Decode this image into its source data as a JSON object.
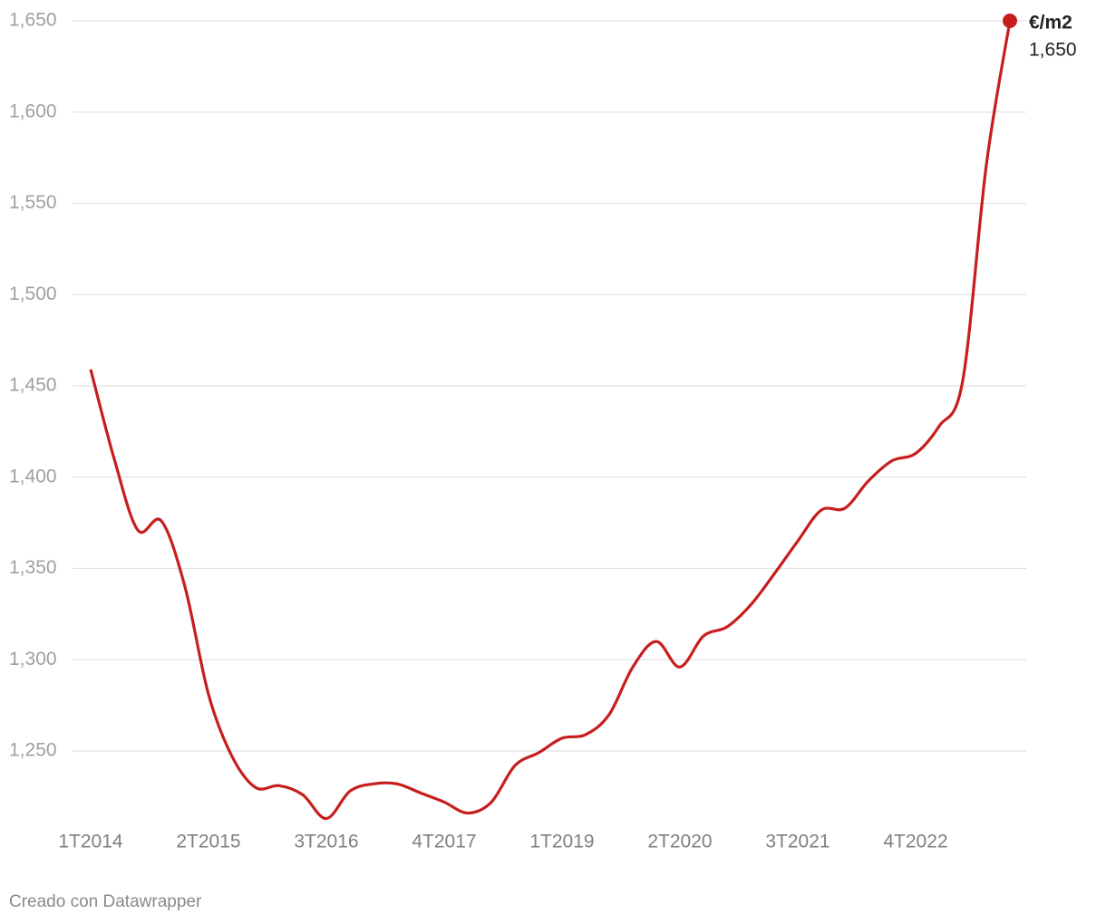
{
  "chart_data": {
    "type": "line",
    "categories": [
      "1T2014",
      null,
      null,
      null,
      null,
      "2T2015",
      null,
      null,
      null,
      null,
      "3T2016",
      null,
      null,
      null,
      null,
      "4T2017",
      null,
      null,
      null,
      null,
      "1T2019",
      null,
      null,
      null,
      null,
      "2T2020",
      null,
      null,
      null,
      null,
      "3T2021",
      null,
      null,
      null,
      null,
      "4T2022",
      null,
      null,
      null,
      null
    ],
    "series": [
      {
        "name": "€/m2",
        "color": "#c71e1d",
        "values": [
          1459,
          1410,
          1371,
          1376,
          1340,
          1281,
          1247,
          1230,
          1231,
          1226,
          1213,
          1228,
          1232,
          1232,
          1227,
          1222,
          1216,
          1222,
          1242,
          1249,
          1257,
          1259,
          1270,
          1296,
          1310,
          1296,
          1313,
          1318,
          1330,
          1347,
          1365,
          1382,
          1383,
          1398,
          1409,
          1413,
          1428,
          1453,
          1571,
          1650
        ],
        "value_labels": [
          null,
          null,
          null,
          null,
          null,
          null,
          null,
          null,
          null,
          null,
          null,
          null,
          null,
          null,
          null,
          null,
          null,
          null,
          null,
          null,
          null,
          null,
          null,
          null,
          null,
          null,
          null,
          null,
          null,
          null,
          null,
          null,
          null,
          null,
          null,
          null,
          null,
          null,
          null,
          "1,650"
        ]
      }
    ],
    "ylim": [
      1212,
      1650
    ],
    "yticks": [
      {
        "value": 1250,
        "label": "1,250"
      },
      {
        "value": 1300,
        "label": "1,300"
      },
      {
        "value": 1350,
        "label": "1,350"
      },
      {
        "value": 1400,
        "label": "1,400"
      },
      {
        "value": 1450,
        "label": "1,450"
      },
      {
        "value": 1500,
        "label": "1,500"
      },
      {
        "value": 1550,
        "label": "1,550"
      },
      {
        "value": 1600,
        "label": "1,600"
      },
      {
        "value": 1650,
        "label": "1,650"
      }
    ],
    "grid": true,
    "source": "Creado con Datawrapper"
  }
}
